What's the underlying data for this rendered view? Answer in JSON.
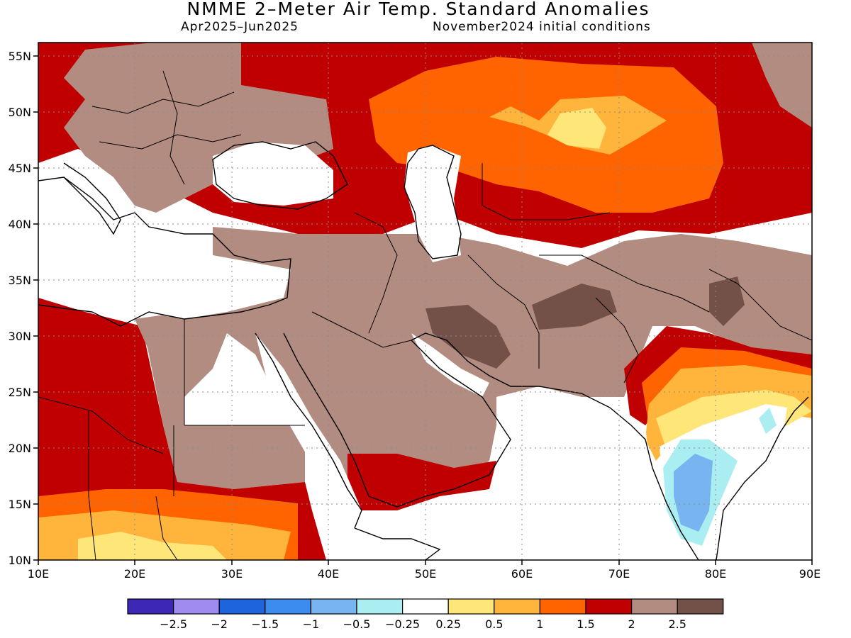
{
  "header": {
    "title": "NMME 2–Meter Air Temp. Standard Anomalies",
    "season": "Apr2025–Jun2025",
    "init": "November2024 initial conditions"
  },
  "map": {
    "lon_labels": [
      "10E",
      "20E",
      "30E",
      "40E",
      "50E",
      "60E",
      "70E",
      "80E",
      "90E"
    ],
    "lat_labels": [
      "10N",
      "15N",
      "20N",
      "25N",
      "30N",
      "35N",
      "40N",
      "45N",
      "50N",
      "55N"
    ],
    "colors": {
      "light_brown": "#b28c80",
      "dark_brown": "#735048",
      "red": "#c00000",
      "orange_red": "#ff6400",
      "orange": "#ffb43c",
      "yellow": "#ffe678",
      "light_cyan": "#aaeef2",
      "light_blue": "#78b4f0",
      "blue": "#3c8cf0"
    }
  },
  "legend": {
    "colors": [
      "#3c28b4",
      "#a08cf0",
      "#1e64dc",
      "#3c8cf0",
      "#78b4f0",
      "#aaeef2",
      "#ffffff",
      "#ffe678",
      "#ffb43c",
      "#ff6400",
      "#c00000",
      "#b28c80",
      "#735048"
    ],
    "labels": [
      "−2.5",
      "−2",
      "−1.5",
      "−1",
      "−0.5",
      "−0.25",
      "0.25",
      "0.5",
      "1",
      "1.5",
      "2",
      "2.5"
    ]
  }
}
